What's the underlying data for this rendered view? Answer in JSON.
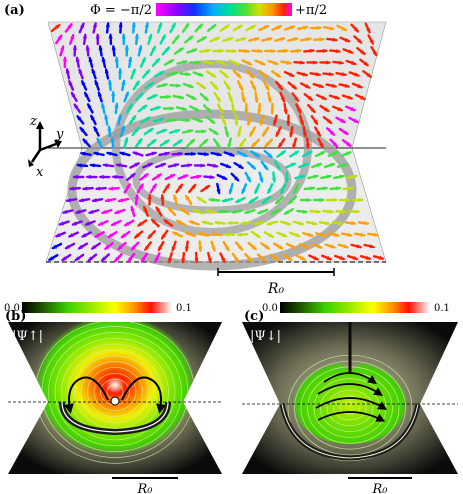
{
  "panel_a": {
    "label": "(a)",
    "colorbar_left": "Φ = −π/2",
    "colorbar_right": "+π/2",
    "axes": {
      "z": "z",
      "y": "y",
      "x": "x"
    },
    "scale_label": "R₀"
  },
  "panel_b": {
    "label": "(b)",
    "colorbar_min": "0.0",
    "colorbar_max": "0.1",
    "quantity": "|Ψ↑|",
    "scale_label": "R₀"
  },
  "panel_c": {
    "label": "(c)",
    "colorbar_min": "0.0",
    "colorbar_max": "0.1",
    "quantity": "|Ψ↓|",
    "scale_label": "R₀"
  },
  "colors": {
    "hue_map": [
      "#ff00ff",
      "#8000ff",
      "#0000ff",
      "#00aaff",
      "#00e0a0",
      "#40e040",
      "#c0e000",
      "#ffa000",
      "#ff2000",
      "#ff00ff"
    ],
    "density_map": [
      "#000000",
      "#2a6a00",
      "#3cdc00",
      "#b8f000",
      "#ffff00",
      "#ff8000",
      "#ff0000",
      "#ffffff"
    ]
  }
}
